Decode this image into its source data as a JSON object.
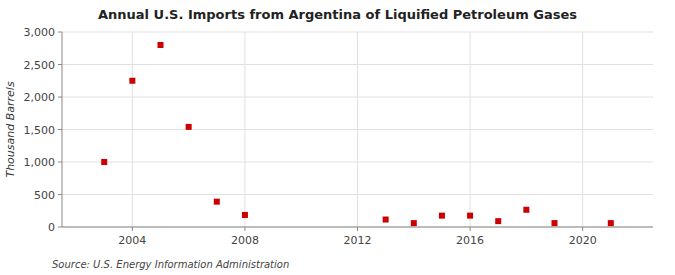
{
  "chart_data": {
    "type": "scatter",
    "title": "Annual U.S. Imports from Argentina of Liquified Petroleum Gases",
    "ylabel": "Thousand Barrels",
    "annotations": [
      "Source: U.S. Energy Information Administration"
    ],
    "x": [
      2003,
      2004,
      2005,
      2006,
      2007,
      2008,
      2013,
      2014,
      2015,
      2016,
      2017,
      2018,
      2019,
      2021
    ],
    "values": [
      1000,
      2250,
      2800,
      1540,
      390,
      185,
      115,
      60,
      175,
      175,
      90,
      265,
      60,
      60
    ],
    "color": "#cc0000",
    "marker": "square",
    "xlim": [
      2001.5,
      2022.5
    ],
    "ylim": [
      0,
      3000
    ],
    "xticks": [
      2004,
      2008,
      2012,
      2016,
      2020
    ],
    "yticks": [
      0,
      500,
      {
        "value": 1000,
        "label": "1,000"
      },
      {
        "value": 1500,
        "label": "1,500"
      },
      {
        "value": 2000,
        "label": "2,000"
      },
      {
        "value": 2500,
        "label": "2,500"
      },
      {
        "value": 3000,
        "label": "3,000"
      }
    ],
    "grid": true
  }
}
